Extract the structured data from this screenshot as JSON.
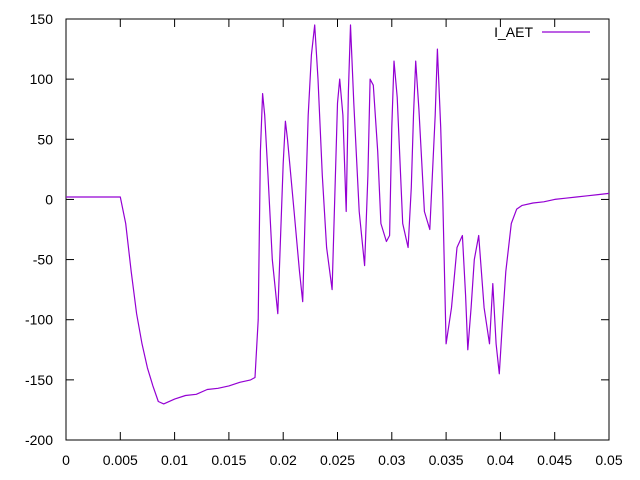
{
  "chart_data": {
    "type": "line",
    "title": "",
    "xlabel": "",
    "ylabel": "",
    "xlim": [
      0,
      0.05
    ],
    "ylim": [
      -200,
      150
    ],
    "x_ticks": [
      0,
      0.005,
      0.01,
      0.015,
      0.02,
      0.025,
      0.03,
      0.035,
      0.04,
      0.045,
      0.05
    ],
    "x_tick_labels": [
      "0",
      "0.005",
      "0.01",
      "0.015",
      "0.02",
      "0.025",
      "0.03",
      "0.035",
      "0.04",
      "0.045",
      "0.05"
    ],
    "y_ticks": [
      -200,
      -150,
      -100,
      -50,
      0,
      50,
      100,
      150
    ],
    "y_tick_labels": [
      "-200",
      "-150",
      "-100",
      "-50",
      "0",
      "50",
      "100",
      "150"
    ],
    "grid": false,
    "legend": {
      "position": "top-right"
    },
    "series": [
      {
        "name": "I_AET",
        "color": "#9400d3",
        "x": [
          0,
          0.005,
          0.0055,
          0.006,
          0.0065,
          0.007,
          0.0075,
          0.008,
          0.0085,
          0.009,
          0.01,
          0.011,
          0.012,
          0.013,
          0.014,
          0.015,
          0.016,
          0.017,
          0.0174,
          0.0177,
          0.0179,
          0.0181,
          0.0183,
          0.0186,
          0.019,
          0.0195,
          0.02,
          0.0202,
          0.0204,
          0.021,
          0.0215,
          0.0218,
          0.022,
          0.0223,
          0.0226,
          0.0229,
          0.0232,
          0.0236,
          0.024,
          0.0245,
          0.025,
          0.0252,
          0.0255,
          0.0258,
          0.026,
          0.0262,
          0.0265,
          0.027,
          0.0275,
          0.0278,
          0.028,
          0.0283,
          0.0287,
          0.029,
          0.0295,
          0.0298,
          0.03,
          0.0302,
          0.0305,
          0.031,
          0.0315,
          0.0318,
          0.032,
          0.0322,
          0.0325,
          0.033,
          0.0335,
          0.034,
          0.0342,
          0.0345,
          0.0347,
          0.035,
          0.0355,
          0.036,
          0.0365,
          0.0368,
          0.037,
          0.0373,
          0.0376,
          0.038,
          0.0385,
          0.039,
          0.0393,
          0.0396,
          0.0399,
          0.0402,
          0.0405,
          0.041,
          0.0415,
          0.042,
          0.043,
          0.044,
          0.045,
          0.046,
          0.047,
          0.048,
          0.049,
          0.05
        ],
        "values": [
          2,
          2,
          -20,
          -60,
          -95,
          -120,
          -140,
          -155,
          -168,
          -170,
          -166,
          -163,
          -162,
          -158,
          -157,
          -155,
          -152,
          -150,
          -148,
          -100,
          40,
          88,
          70,
          20,
          -50,
          -95,
          30,
          65,
          50,
          -10,
          -60,
          -85,
          -20,
          70,
          120,
          145,
          100,
          20,
          -40,
          -75,
          80,
          100,
          70,
          -10,
          90,
          145,
          80,
          -10,
          -55,
          20,
          100,
          95,
          40,
          -20,
          -35,
          -30,
          60,
          115,
          85,
          -20,
          -40,
          10,
          70,
          115,
          75,
          -10,
          -25,
          70,
          125,
          60,
          0,
          -120,
          -90,
          -40,
          -30,
          -80,
          -125,
          -90,
          -50,
          -30,
          -90,
          -120,
          -70,
          -120,
          -145,
          -100,
          -60,
          -20,
          -8,
          -5,
          -3,
          -2,
          0,
          1,
          2,
          3,
          4,
          5
        ]
      }
    ]
  }
}
